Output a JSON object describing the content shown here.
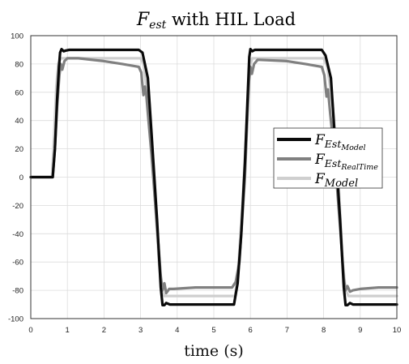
{
  "chart_data": {
    "type": "line",
    "title": {
      "main": "F",
      "sub": "est",
      "rest": " with HIL Load"
    },
    "xlabel": "time (s)",
    "ylabel": "",
    "xlim": [
      0,
      10
    ],
    "ylim": [
      -100,
      100
    ],
    "xticks": [
      0,
      1,
      2,
      3,
      4,
      5,
      6,
      7,
      8,
      9,
      10
    ],
    "yticks": [
      100,
      80,
      60,
      40,
      20,
      0,
      -20,
      -40,
      -60,
      -80,
      -100
    ],
    "grid": true,
    "legend_position": "right",
    "series": [
      {
        "name": {
          "main": "F",
          "sub": "Est",
          "subsub": "Model"
        },
        "color": "#0a0a0a",
        "points": [
          [
            0,
            0
          ],
          [
            0.6,
            0
          ],
          [
            0.66,
            20
          ],
          [
            0.72,
            55
          ],
          [
            0.77,
            78
          ],
          [
            0.8,
            88
          ],
          [
            0.84,
            90.5
          ],
          [
            0.9,
            89
          ],
          [
            0.96,
            89.5
          ],
          [
            1.05,
            90
          ],
          [
            2.95,
            90
          ],
          [
            3.05,
            88
          ],
          [
            3.2,
            70
          ],
          [
            3.3,
            30
          ],
          [
            3.45,
            -30
          ],
          [
            3.55,
            -78
          ],
          [
            3.6,
            -90.5
          ],
          [
            3.65,
            -90.5
          ],
          [
            3.7,
            -89
          ],
          [
            3.8,
            -90
          ],
          [
            5.55,
            -90
          ],
          [
            5.65,
            -75
          ],
          [
            5.75,
            -40
          ],
          [
            5.85,
            10
          ],
          [
            5.93,
            60
          ],
          [
            5.97,
            85
          ],
          [
            6.0,
            90.5
          ],
          [
            6.05,
            89
          ],
          [
            6.12,
            90
          ],
          [
            7.95,
            90
          ],
          [
            8.05,
            86
          ],
          [
            8.2,
            70
          ],
          [
            8.3,
            30
          ],
          [
            8.45,
            -30
          ],
          [
            8.55,
            -78
          ],
          [
            8.6,
            -90.5
          ],
          [
            8.65,
            -90.5
          ],
          [
            8.72,
            -89
          ],
          [
            8.8,
            -90
          ],
          [
            10,
            -90
          ]
        ]
      },
      {
        "name": {
          "main": "F",
          "sub": "Est",
          "subsub": "RealTime"
        },
        "color": "#808080",
        "points": [
          [
            0,
            0
          ],
          [
            0.6,
            0
          ],
          [
            0.66,
            20
          ],
          [
            0.72,
            50
          ],
          [
            0.78,
            72
          ],
          [
            0.82,
            80
          ],
          [
            0.86,
            76
          ],
          [
            0.92,
            82
          ],
          [
            1.0,
            84
          ],
          [
            1.3,
            84
          ],
          [
            2.0,
            82
          ],
          [
            2.5,
            80
          ],
          [
            2.95,
            78
          ],
          [
            3.02,
            74
          ],
          [
            3.05,
            65
          ],
          [
            3.08,
            58
          ],
          [
            3.12,
            64
          ],
          [
            3.15,
            60
          ],
          [
            3.2,
            45
          ],
          [
            3.3,
            15
          ],
          [
            3.45,
            -35
          ],
          [
            3.55,
            -70
          ],
          [
            3.6,
            -80
          ],
          [
            3.65,
            -75
          ],
          [
            3.7,
            -82
          ],
          [
            3.78,
            -79
          ],
          [
            3.9,
            -79
          ],
          [
            4.5,
            -78
          ],
          [
            5.0,
            -78
          ],
          [
            5.5,
            -78
          ],
          [
            5.6,
            -74
          ],
          [
            5.7,
            -60
          ],
          [
            5.75,
            -40
          ],
          [
            5.85,
            0
          ],
          [
            5.92,
            45
          ],
          [
            5.96,
            68
          ],
          [
            6.0,
            78
          ],
          [
            6.04,
            73
          ],
          [
            6.1,
            80
          ],
          [
            6.2,
            83
          ],
          [
            7.0,
            82
          ],
          [
            7.5,
            80
          ],
          [
            7.95,
            78
          ],
          [
            8.02,
            72
          ],
          [
            8.05,
            64
          ],
          [
            8.08,
            57
          ],
          [
            8.12,
            62
          ],
          [
            8.18,
            45
          ],
          [
            8.3,
            15
          ],
          [
            8.45,
            -35
          ],
          [
            8.55,
            -72
          ],
          [
            8.6,
            -80
          ],
          [
            8.65,
            -77
          ],
          [
            8.72,
            -81
          ],
          [
            8.8,
            -80
          ],
          [
            9.0,
            -79
          ],
          [
            9.5,
            -78
          ],
          [
            10,
            -78
          ]
        ]
      },
      {
        "name": {
          "main": "F",
          "sub": "Model",
          "subsub": ""
        },
        "color": "#cfcfcf",
        "points": [
          [
            0,
            0
          ],
          [
            0.58,
            0
          ],
          [
            0.64,
            30
          ],
          [
            0.7,
            65
          ],
          [
            0.75,
            80
          ],
          [
            0.82,
            84
          ],
          [
            3.0,
            84
          ],
          [
            3.08,
            80
          ],
          [
            3.2,
            55
          ],
          [
            3.35,
            0
          ],
          [
            3.5,
            -60
          ],
          [
            3.58,
            -80
          ],
          [
            3.65,
            -84
          ],
          [
            5.58,
            -84
          ],
          [
            5.65,
            -70
          ],
          [
            5.78,
            -20
          ],
          [
            5.9,
            40
          ],
          [
            5.98,
            78
          ],
          [
            6.05,
            84
          ],
          [
            8.0,
            84
          ],
          [
            8.1,
            78
          ],
          [
            8.25,
            50
          ],
          [
            8.4,
            0
          ],
          [
            8.52,
            -60
          ],
          [
            8.6,
            -80
          ],
          [
            8.68,
            -84
          ],
          [
            10,
            -84
          ]
        ]
      }
    ]
  }
}
